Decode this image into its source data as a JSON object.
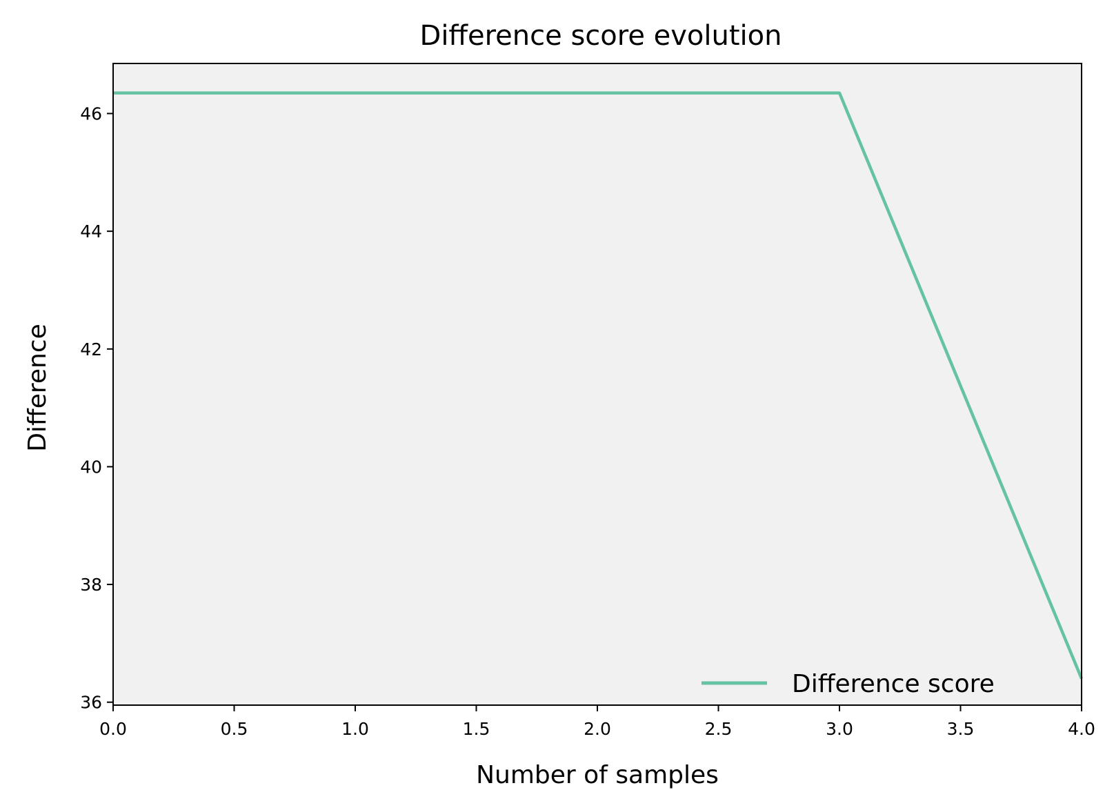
{
  "chart_data": {
    "type": "line",
    "title": "Difference score evolution",
    "xlabel": "Number of samples",
    "ylabel": "Difference",
    "xlim": [
      0,
      4
    ],
    "ylim": [
      35.95,
      46.85
    ],
    "xticks": [
      0.0,
      0.5,
      1.0,
      1.5,
      2.0,
      2.5,
      3.0,
      3.5,
      4.0
    ],
    "xtick_labels": [
      "0.0",
      "0.5",
      "1.0",
      "1.5",
      "2.0",
      "2.5",
      "3.0",
      "3.5",
      "4.0"
    ],
    "yticks": [
      36,
      38,
      40,
      42,
      44,
      46
    ],
    "ytick_labels": [
      "36",
      "38",
      "40",
      "42",
      "44",
      "46"
    ],
    "grid": false,
    "legend_position": "lower-right",
    "background_color": "#f1f1f1",
    "series": [
      {
        "name": "Difference score",
        "color": "#66c2a5",
        "x": [
          0,
          1,
          2,
          3,
          4
        ],
        "y": [
          46.35,
          46.35,
          46.35,
          46.35,
          36.4
        ]
      }
    ]
  }
}
